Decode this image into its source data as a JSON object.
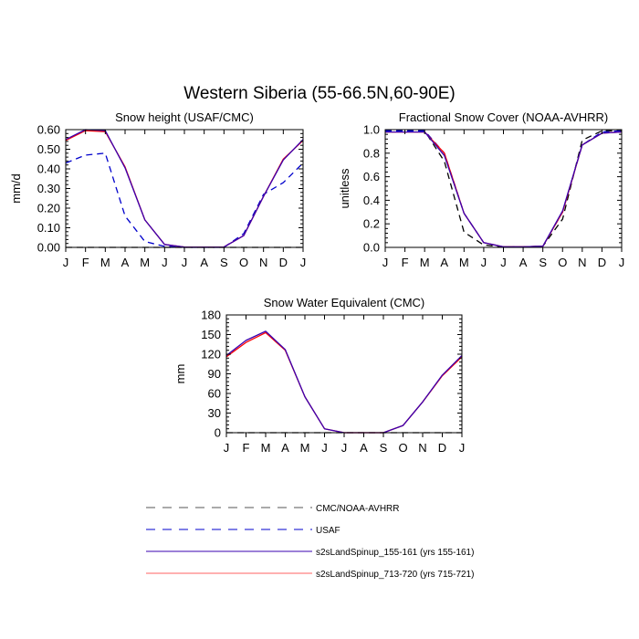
{
  "figure": {
    "title": "Western Siberia (55-66.5N,60-90E)"
  },
  "months": [
    "J",
    "F",
    "M",
    "A",
    "M",
    "J",
    "J",
    "A",
    "S",
    "O",
    "N",
    "D",
    "J"
  ],
  "legend": [
    {
      "label": "CMC/NOAA-AVHRR",
      "color": "#000000",
      "dash": "dashed"
    },
    {
      "label": "USAF",
      "color": "#0000cc",
      "dash": "dashed"
    },
    {
      "label": "s2sLandSpinup_155-161 (yrs 155-161)",
      "color": "#3a00b0",
      "dash": "solid"
    },
    {
      "label": "s2sLandSpinup_713-720 (yrs 715-721)",
      "color": "#ff0000",
      "dash": "solid"
    }
  ],
  "chart_data": [
    {
      "type": "line",
      "title": "Snow height (USAF/CMC)",
      "xlabel": "",
      "ylabel": "mm/d",
      "ylim": [
        0,
        0.6
      ],
      "yticks": [
        "0.00",
        "0.10",
        "0.20",
        "0.30",
        "0.40",
        "0.50",
        "0.60"
      ],
      "tick_values": [
        0,
        0.1,
        0.2,
        0.3,
        0.4,
        0.5,
        0.6
      ],
      "series": [
        {
          "name": "CMC/NOAA-AVHRR",
          "color": "#000000",
          "dash": "dashed",
          "values": [
            0,
            0,
            0,
            0,
            0,
            0,
            0,
            0,
            0,
            0,
            0,
            0,
            0
          ]
        },
        {
          "name": "USAF",
          "color": "#0000cc",
          "dash": "dashed",
          "values": [
            0.43,
            0.47,
            0.48,
            0.16,
            0.03,
            0.005,
            0,
            0,
            0,
            0.07,
            0.27,
            0.33,
            0.43
          ]
        },
        {
          "name": "s2sLandSpinup_713-720 (yrs 715-721)",
          "color": "#ff0000",
          "dash": "solid",
          "values": [
            0.545,
            0.595,
            0.59,
            0.41,
            0.14,
            0.015,
            0.002,
            0.001,
            0.002,
            0.06,
            0.26,
            0.45,
            0.545
          ]
        },
        {
          "name": "s2sLandSpinup_155-161 (yrs 155-161)",
          "color": "#3a00b0",
          "dash": "solid",
          "values": [
            0.55,
            0.6,
            0.595,
            0.405,
            0.14,
            0.015,
            0.002,
            0.001,
            0.002,
            0.06,
            0.26,
            0.445,
            0.55
          ]
        }
      ]
    },
    {
      "type": "line",
      "title": "Fractional Snow Cover (NOAA-AVHRR)",
      "xlabel": "",
      "ylabel": "unitless",
      "ylim": [
        0,
        1
      ],
      "yticks": [
        "0.0",
        "0.2",
        "0.4",
        "0.6",
        "0.8",
        "1.0"
      ],
      "tick_values": [
        0,
        0.2,
        0.4,
        0.6,
        0.8,
        1.0
      ],
      "series": [
        {
          "name": "CMC/NOAA-AVHRR",
          "color": "#000000",
          "dash": "dashed",
          "values": [
            0.99,
            0.99,
            0.99,
            0.73,
            0.13,
            0.02,
            0.005,
            0.005,
            0.01,
            0.24,
            0.91,
            0.99,
            0.99
          ]
        },
        {
          "name": "USAF",
          "color": "#0000cc",
          "dash": "dashed",
          "values": [
            0.99,
            0.99,
            0.99,
            0.8,
            0.29,
            0.04,
            0.005,
            0.005,
            0.01,
            0.3,
            0.87,
            0.98,
            0.99
          ]
        },
        {
          "name": "s2sLandSpinup_713-720 (yrs 715-721)",
          "color": "#ff0000",
          "dash": "solid",
          "values": [
            0.98,
            0.98,
            0.98,
            0.8,
            0.29,
            0.04,
            0.005,
            0.005,
            0.01,
            0.3,
            0.87,
            0.97,
            0.98
          ]
        },
        {
          "name": "s2sLandSpinup_155-161 (yrs 155-161)",
          "color": "#3a00b0",
          "dash": "solid",
          "values": [
            0.98,
            0.98,
            0.98,
            0.78,
            0.29,
            0.04,
            0.005,
            0.005,
            0.01,
            0.31,
            0.87,
            0.97,
            0.98
          ]
        }
      ]
    },
    {
      "type": "line",
      "title": "Snow Water Equivalent (CMC)",
      "xlabel": "",
      "ylabel": "mm",
      "ylim": [
        0,
        180
      ],
      "yticks": [
        "0",
        "30",
        "60",
        "90",
        "120",
        "150",
        "180"
      ],
      "tick_values": [
        0,
        30,
        60,
        90,
        120,
        150,
        180
      ],
      "series": [
        {
          "name": "CMC/NOAA-AVHRR",
          "color": "#000000",
          "dash": "dashed",
          "values": [
            0,
            0,
            0,
            0,
            0,
            0,
            0,
            0,
            0,
            0,
            0,
            0,
            0
          ]
        },
        {
          "name": "s2sLandSpinup_713-720 (yrs 715-721)",
          "color": "#ff0000",
          "dash": "solid",
          "values": [
            116,
            138,
            153,
            126,
            55,
            6,
            0,
            0,
            0,
            11,
            47,
            87,
            116
          ]
        },
        {
          "name": "s2sLandSpinup_155-161 (yrs 155-161)",
          "color": "#3a00b0",
          "dash": "solid",
          "values": [
            118,
            141,
            155,
            127,
            55,
            6,
            0,
            0,
            0,
            11,
            47,
            88,
            118
          ]
        }
      ]
    }
  ]
}
